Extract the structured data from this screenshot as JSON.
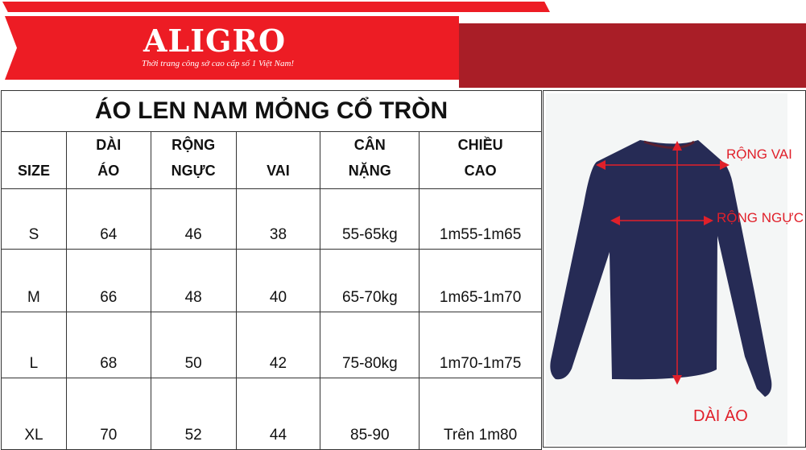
{
  "brand": {
    "logo": "ALIGRO",
    "tagline": "Thời trang công sở cao cấp số 1 Việt Nam!",
    "primary_color": "#ed1c24",
    "dark_color": "#a91e27"
  },
  "table": {
    "title": "ÁO LEN NAM MỎNG CỔ TRÒN",
    "headers": [
      "SIZE",
      "DÀI ÁO",
      "RỘNG NGỰC",
      "VAI",
      "CÂN NẶNG",
      "CHIỀU CAO"
    ],
    "rows": [
      [
        "S",
        "64",
        "46",
        "38",
        "55-65kg",
        "1m55-1m65"
      ],
      [
        "M",
        "66",
        "48",
        "40",
        "65-70kg",
        "1m65-1m70"
      ],
      [
        "L",
        "68",
        "50",
        "42",
        "75-80kg",
        "1m70-1m75"
      ],
      [
        "XL",
        "70",
        "52",
        "44",
        "85-90",
        "Trên 1m80"
      ]
    ]
  },
  "diagram": {
    "shoulder_label": "RỘNG VAI",
    "chest_label": "RỘNG NGỰC",
    "length_label": "DÀI ÁO",
    "garment_color": "#262b55",
    "arrow_color": "#e0202a"
  }
}
